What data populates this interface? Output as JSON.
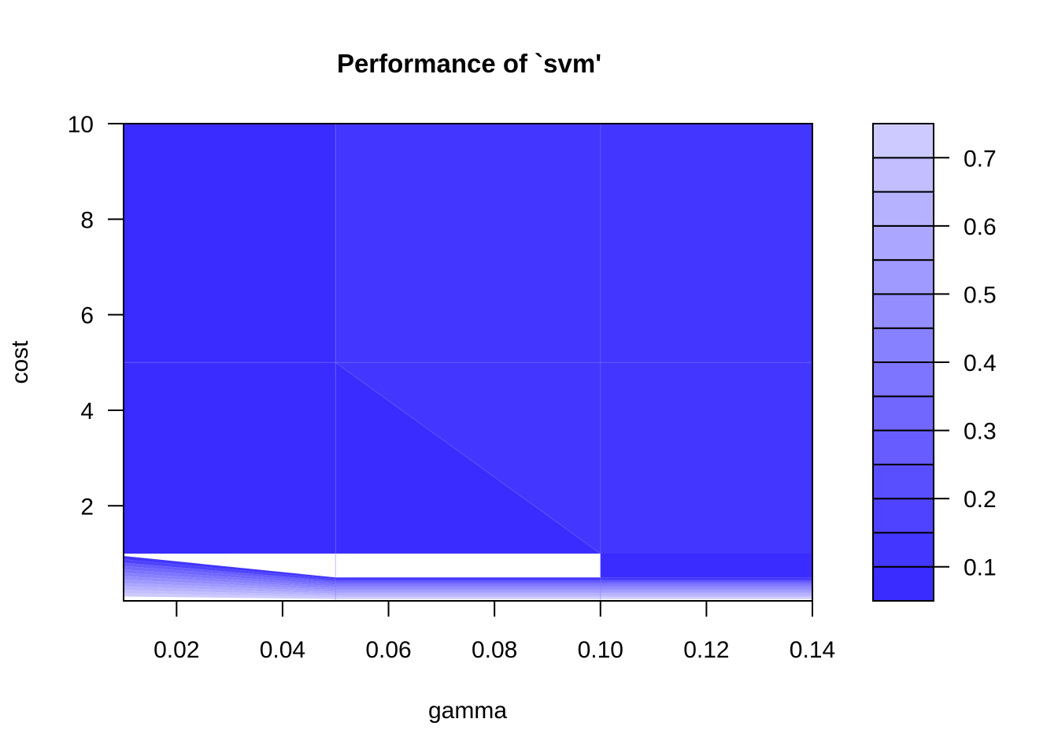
{
  "chart_data": {
    "type": "heatmap",
    "subtype": "filled-contour",
    "title": "Performance of `svm'",
    "xlabel": "gamma",
    "ylabel": "cost",
    "xlim": [
      0.01,
      0.14
    ],
    "ylim": [
      0.01,
      10
    ],
    "x_ticks": [
      0.02,
      0.04,
      0.06,
      0.08,
      0.1,
      0.12,
      0.14
    ],
    "x_tick_labels": [
      "0.02",
      "0.04",
      "0.06",
      "0.08",
      "0.10",
      "0.12",
      "0.14"
    ],
    "y_ticks": [
      2,
      4,
      6,
      8,
      10
    ],
    "y_tick_labels": [
      "2",
      "4",
      "6",
      "8",
      "10"
    ],
    "grid": {
      "gamma": [
        0.01,
        0.05,
        0.1,
        0.14
      ],
      "cost": [
        0.01,
        1,
        5,
        10
      ]
    },
    "error_regions": [
      {
        "cost_range": [
          5,
          10
        ],
        "gamma_range": [
          0.01,
          0.05
        ],
        "value": 0.07
      },
      {
        "cost_range": [
          5,
          10
        ],
        "gamma_range": [
          0.05,
          0.14
        ],
        "value": 0.1
      },
      {
        "cost_range": [
          1,
          5
        ],
        "gamma_range": [
          0.01,
          0.05
        ],
        "value": 0.08
      },
      {
        "cost_range": [
          1,
          5
        ],
        "gamma_range": [
          0.05,
          0.1
        ],
        "value": 0.07
      },
      {
        "cost_range": [
          1,
          5
        ],
        "gamma_range": [
          0.1,
          0.14
        ],
        "value": 0.1
      },
      {
        "cost_range": [
          0.01,
          1
        ],
        "gamma_range": [
          0.01,
          0.14
        ],
        "value": 0.75
      }
    ],
    "colorbar": {
      "levels": [
        0.05,
        0.1,
        0.15,
        0.2,
        0.25,
        0.3,
        0.35,
        0.4,
        0.45,
        0.5,
        0.55,
        0.6,
        0.65,
        0.7,
        0.75
      ],
      "colors": [
        "#3a2bff",
        "#4336ff",
        "#4f43ff",
        "#5a4fff",
        "#665cff",
        "#7167ff",
        "#7d74ff",
        "#8881ff",
        "#948dff",
        "#9f9aff",
        "#aba6ff",
        "#b6b2ff",
        "#c2beff",
        "#cdcaff"
      ],
      "ticks": [
        0.1,
        0.2,
        0.3,
        0.4,
        0.5,
        0.6,
        0.7
      ],
      "tick_labels": [
        "0.1",
        "0.2",
        "0.3",
        "0.4",
        "0.5",
        "0.6",
        "0.7"
      ]
    }
  }
}
